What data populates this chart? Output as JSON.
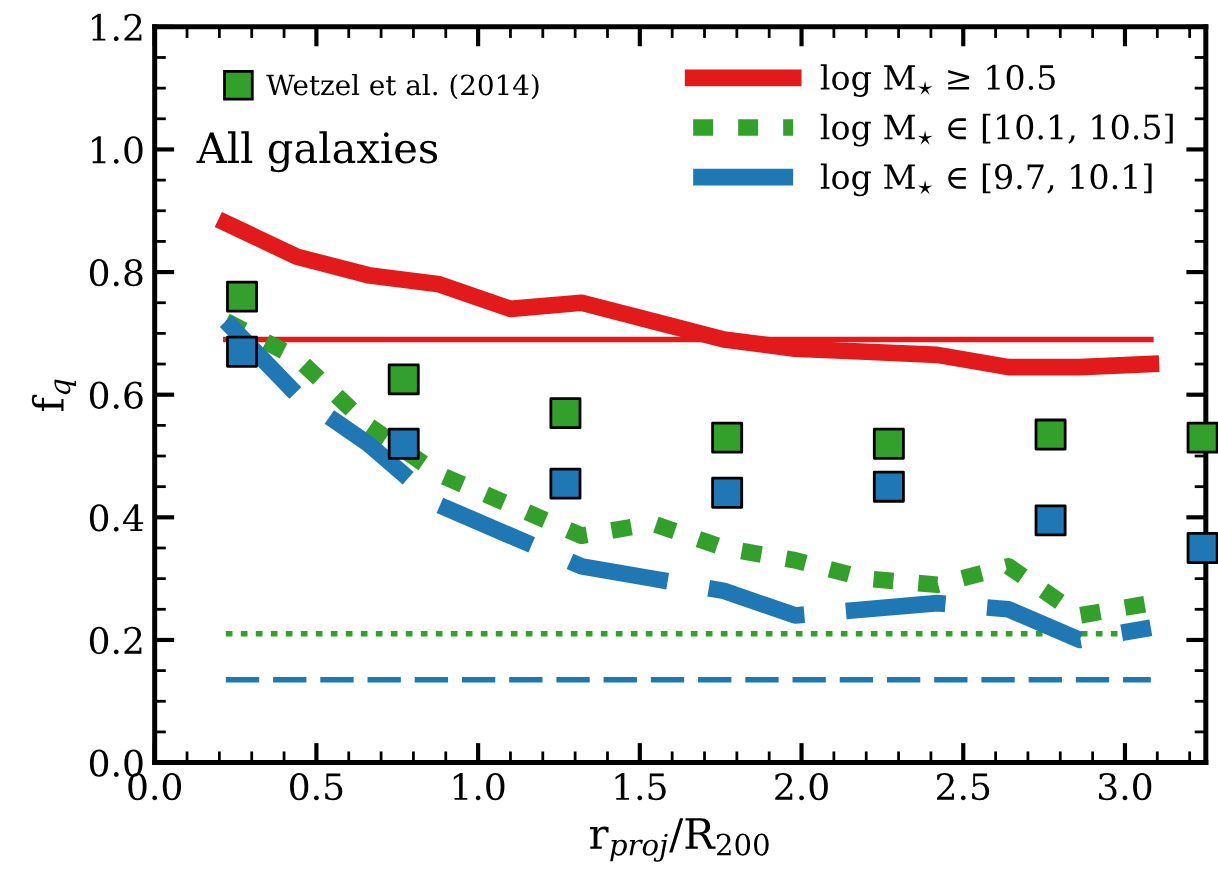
{
  "chart_data": {
    "type": "line",
    "xlabel": "r$_{proj}$/R$_{200}$",
    "ylabel": "f$_{q}$",
    "xlim": [
      0,
      3.25
    ],
    "ylim": [
      0,
      1.2
    ],
    "xticks": [
      {
        "value": 0,
        "label": "0.0"
      },
      0.5,
      {
        "value": 1,
        "label": "1.0"
      },
      1.5,
      {
        "value": 2,
        "label": "2.0"
      },
      2.5,
      {
        "value": 3,
        "label": "3.0"
      }
    ],
    "yticks": [
      {
        "value": 0,
        "label": "0.0"
      },
      0.2,
      0.4,
      0.6,
      0.8,
      {
        "value": 1,
        "label": "1.0"
      },
      1.2
    ],
    "grid": false,
    "legend": "top right",
    "marker": "none",
    "series": [
      {
        "name": "log M$_{⋆}$ ≥ 10.5",
        "color": "#e31a1c",
        "line_style": "solid",
        "x": [
          0.22,
          0.44,
          0.66,
          0.88,
          1.1,
          1.32,
          1.54,
          1.76,
          1.98,
          2.2,
          2.42,
          2.64,
          2.86,
          3.08
        ],
        "values": [
          0.88,
          0.825,
          0.795,
          0.78,
          0.74,
          0.75,
          0.72,
          0.69,
          0.675,
          0.67,
          0.665,
          0.645,
          0.645,
          0.65
        ]
      },
      {
        "name": "log M$_{⋆}$ ∈ [10.1, 10.5]",
        "color": "#33a02c",
        "line_style": "dotted",
        "x": [
          0.22,
          0.44,
          0.66,
          0.88,
          1.1,
          1.32,
          1.54,
          1.76,
          1.98,
          2.2,
          2.42,
          2.64,
          2.86,
          3.08
        ],
        "values": [
          0.72,
          0.66,
          0.55,
          0.47,
          0.42,
          0.37,
          0.39,
          0.35,
          0.33,
          0.3,
          0.29,
          0.32,
          0.24,
          0.26
        ]
      },
      {
        "name": "log M$_{⋆}$ ∈ [9.7, 10.1]",
        "color": "#1f78b4",
        "line_style": "dashed",
        "x": [
          0.22,
          0.44,
          0.66,
          0.88,
          1.1,
          1.32,
          1.54,
          1.76,
          1.98,
          2.2,
          2.42,
          2.64,
          2.86,
          3.08
        ],
        "values": [
          0.72,
          0.6,
          0.52,
          0.42,
          0.37,
          0.32,
          0.3,
          0.28,
          0.24,
          0.25,
          0.26,
          0.25,
          0.2,
          0.22
        ]
      },
      {
        "name": "Wetzel et al. (2014)",
        "type": "scatter",
        "marker": "square",
        "color": "#33a02c",
        "x": [
          0.27,
          0.77,
          1.27,
          1.77,
          2.27,
          2.77,
          3.24
        ],
        "values": [
          0.76,
          0.625,
          0.57,
          0.53,
          0.52,
          0.535,
          0.53
        ]
      },
      {
        "type": "scatter",
        "marker": "square",
        "color": "#1f78b4",
        "x": [
          0.27,
          0.77,
          1.27,
          1.77,
          2.27,
          2.77,
          3.24
        ],
        "values": [
          0.67,
          0.52,
          0.455,
          0.44,
          0.45,
          0.395,
          0.35
        ]
      }
    ],
    "ref_lines": [
      {
        "axis": "y",
        "value": 0.69,
        "color": "#e31a1c",
        "line_style": "solid"
      },
      {
        "axis": "y",
        "value": 0.21,
        "color": "#33a02c",
        "line_style": "dotted"
      },
      {
        "axis": "y",
        "value": 0.135,
        "color": "#1f78b4",
        "line_style": "dashed"
      }
    ],
    "annotations": [
      "All galaxies"
    ]
  }
}
